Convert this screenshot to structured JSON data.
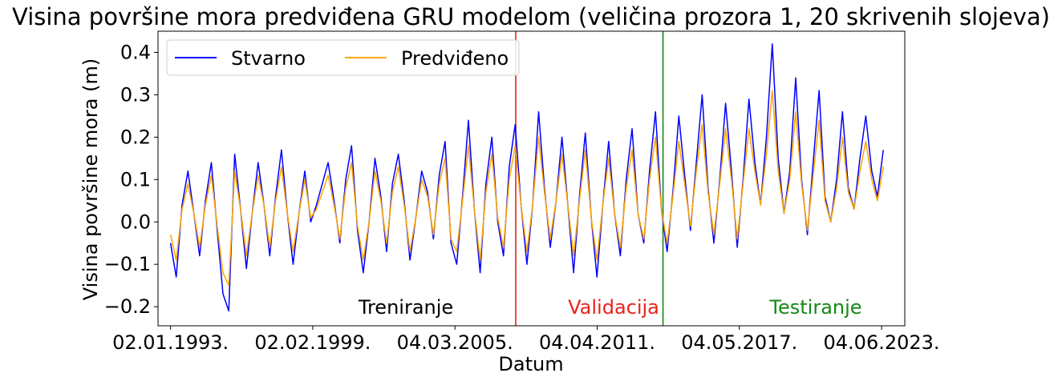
{
  "chart_data": {
    "type": "line",
    "title": "Visina površine mora predviđena GRU modelom (veličina prozora 1, 20 skrivenih slojeva)",
    "xlabel": "Datum",
    "ylabel": "Visina površine mora (m)",
    "xlim": [
      "1992-06-20",
      "2024-06-01"
    ],
    "ylim": [
      -0.245,
      0.45
    ],
    "x_ticks": [
      "1993-01-02",
      "1999-02-02",
      "2005-03-04",
      "2011-04-04",
      "2017-05-04",
      "2023-06-04"
    ],
    "x_tick_labels": [
      "02.01.1993.",
      "02.02.1999.",
      "04.03.2005.",
      "04.04.2011.",
      "04.05.2017.",
      "04.06.2023."
    ],
    "y_ticks": [
      -0.2,
      -0.1,
      0.0,
      0.1,
      0.2,
      0.3,
      0.4
    ],
    "y_tick_labels": [
      "−0.2",
      "−0.1",
      "0.0",
      "0.1",
      "0.2",
      "0.3",
      "0.4"
    ],
    "grid": false,
    "legend": {
      "position": "upper-left",
      "columns": 2
    },
    "colors": {
      "actual": "#0000ff",
      "predicted": "#ffa500",
      "validation": "#e8231b",
      "test": "#138a13"
    },
    "split_lines": [
      {
        "x": "2007-10-10",
        "color": "#e8231b"
      },
      {
        "x": "2014-01-27",
        "color": "#138a13"
      }
    ],
    "annotations": [
      {
        "text": "Treniranje",
        "color": "#000000"
      },
      {
        "text": "Validacija",
        "color": "#e8231b"
      },
      {
        "text": "Testiranje",
        "color": "#138a13"
      }
    ],
    "series": [
      {
        "name": "Stvarno",
        "color": "#0000ff",
        "x": [
          "1993-01-01",
          "1993-04-01",
          "1993-07-01",
          "1993-10-01",
          "1994-01-01",
          "1994-04-01",
          "1994-07-01",
          "1994-10-01",
          "1995-01-01",
          "1995-04-01",
          "1995-07-01",
          "1995-10-01",
          "1996-01-01",
          "1996-04-01",
          "1996-07-01",
          "1996-10-01",
          "1997-01-01",
          "1997-04-01",
          "1997-07-01",
          "1997-10-01",
          "1998-01-01",
          "1998-04-01",
          "1998-07-01",
          "1998-10-01",
          "1999-01-01",
          "1999-04-01",
          "1999-07-01",
          "1999-10-01",
          "2000-01-01",
          "2000-04-01",
          "2000-07-01",
          "2000-10-01",
          "2001-01-01",
          "2001-04-01",
          "2001-07-01",
          "2001-10-01",
          "2002-01-01",
          "2002-04-01",
          "2002-07-01",
          "2002-10-01",
          "2003-01-01",
          "2003-04-01",
          "2003-07-01",
          "2003-10-01",
          "2004-01-01",
          "2004-04-01",
          "2004-07-01",
          "2004-10-01",
          "2005-01-01",
          "2005-04-01",
          "2005-07-01",
          "2005-10-01",
          "2006-01-01",
          "2006-04-01",
          "2006-07-01",
          "2006-10-01",
          "2007-01-01",
          "2007-04-01",
          "2007-07-01",
          "2007-10-01",
          "2008-01-01",
          "2008-04-01",
          "2008-07-01",
          "2008-10-01",
          "2009-01-01",
          "2009-04-01",
          "2009-07-01",
          "2009-10-01",
          "2010-01-01",
          "2010-04-01",
          "2010-07-01",
          "2010-10-01",
          "2011-01-01",
          "2011-04-01",
          "2011-07-01",
          "2011-10-01",
          "2012-01-01",
          "2012-04-01",
          "2012-07-01",
          "2012-10-01",
          "2013-01-01",
          "2013-04-01",
          "2013-07-01",
          "2013-10-01",
          "2014-01-01",
          "2014-04-01",
          "2014-07-01",
          "2014-10-01",
          "2015-01-01",
          "2015-04-01",
          "2015-07-01",
          "2015-10-01",
          "2016-01-01",
          "2016-04-01",
          "2016-07-01",
          "2016-10-01",
          "2017-01-01",
          "2017-04-01",
          "2017-07-01",
          "2017-10-01",
          "2018-01-01",
          "2018-04-01",
          "2018-07-01",
          "2018-10-01",
          "2019-01-01",
          "2019-04-01",
          "2019-07-01",
          "2019-10-01",
          "2020-01-01",
          "2020-04-01",
          "2020-07-01",
          "2020-10-01",
          "2021-01-01",
          "2021-04-01",
          "2021-07-01",
          "2021-10-01",
          "2022-01-01",
          "2022-04-01",
          "2022-07-01",
          "2022-10-01",
          "2023-01-01",
          "2023-04-01",
          "2023-07-01"
        ],
        "values": [
          -0.05,
          -0.13,
          0.04,
          0.12,
          0.02,
          -0.08,
          0.05,
          0.14,
          -0.02,
          -0.17,
          -0.21,
          0.16,
          0.03,
          -0.11,
          0.02,
          0.14,
          0.04,
          -0.08,
          0.06,
          0.17,
          0.02,
          -0.1,
          0.02,
          0.12,
          0.0,
          0.04,
          0.09,
          0.14,
          0.05,
          -0.05,
          0.1,
          0.18,
          -0.02,
          -0.12,
          0.0,
          0.15,
          0.06,
          -0.07,
          0.09,
          0.16,
          0.05,
          -0.09,
          0.01,
          0.12,
          0.07,
          -0.04,
          0.11,
          0.19,
          -0.05,
          -0.1,
          0.06,
          0.24,
          0.03,
          -0.12,
          0.09,
          0.2,
          0.0,
          -0.08,
          0.13,
          0.23,
          0.04,
          -0.1,
          0.04,
          0.26,
          0.08,
          -0.06,
          0.05,
          0.2,
          0.04,
          -0.12,
          0.06,
          0.21,
          0.01,
          -0.13,
          0.04,
          0.19,
          0.02,
          -0.08,
          0.1,
          0.22,
          0.02,
          -0.05,
          0.12,
          0.26,
          0.03,
          -0.07,
          0.07,
          0.25,
          0.11,
          -0.02,
          0.14,
          0.3,
          0.08,
          -0.05,
          0.1,
          0.28,
          0.12,
          -0.06,
          0.1,
          0.29,
          0.14,
          0.04,
          0.2,
          0.42,
          0.15,
          0.02,
          0.12,
          0.34,
          0.1,
          -0.03,
          0.14,
          0.31,
          0.06,
          0.0,
          0.1,
          0.26,
          0.08,
          0.03,
          0.15,
          0.25,
          0.12,
          0.06,
          0.17
        ]
      },
      {
        "name": "Predviđeno",
        "color": "#ffa500",
        "x": [
          "1993-01-01",
          "1993-04-01",
          "1993-07-01",
          "1993-10-01",
          "1994-01-01",
          "1994-04-01",
          "1994-07-01",
          "1994-10-01",
          "1995-01-01",
          "1995-04-01",
          "1995-07-01",
          "1995-10-01",
          "1996-01-01",
          "1996-04-01",
          "1996-07-01",
          "1996-10-01",
          "1997-01-01",
          "1997-04-01",
          "1997-07-01",
          "1997-10-01",
          "1998-01-01",
          "1998-04-01",
          "1998-07-01",
          "1998-10-01",
          "1999-01-01",
          "1999-04-01",
          "1999-07-01",
          "1999-10-01",
          "2000-01-01",
          "2000-04-01",
          "2000-07-01",
          "2000-10-01",
          "2001-01-01",
          "2001-04-01",
          "2001-07-01",
          "2001-10-01",
          "2002-01-01",
          "2002-04-01",
          "2002-07-01",
          "2002-10-01",
          "2003-01-01",
          "2003-04-01",
          "2003-07-01",
          "2003-10-01",
          "2004-01-01",
          "2004-04-01",
          "2004-07-01",
          "2004-10-01",
          "2005-01-01",
          "2005-04-01",
          "2005-07-01",
          "2005-10-01",
          "2006-01-01",
          "2006-04-01",
          "2006-07-01",
          "2006-10-01",
          "2007-01-01",
          "2007-04-01",
          "2007-07-01",
          "2007-10-01",
          "2008-01-01",
          "2008-04-01",
          "2008-07-01",
          "2008-10-01",
          "2009-01-01",
          "2009-04-01",
          "2009-07-01",
          "2009-10-01",
          "2010-01-01",
          "2010-04-01",
          "2010-07-01",
          "2010-10-01",
          "2011-01-01",
          "2011-04-01",
          "2011-07-01",
          "2011-10-01",
          "2012-01-01",
          "2012-04-01",
          "2012-07-01",
          "2012-10-01",
          "2013-01-01",
          "2013-04-01",
          "2013-07-01",
          "2013-10-01",
          "2014-01-01",
          "2014-04-01",
          "2014-07-01",
          "2014-10-01",
          "2015-01-01",
          "2015-04-01",
          "2015-07-01",
          "2015-10-01",
          "2016-01-01",
          "2016-04-01",
          "2016-07-01",
          "2016-10-01",
          "2017-01-01",
          "2017-04-01",
          "2017-07-01",
          "2017-10-01",
          "2018-01-01",
          "2018-04-01",
          "2018-07-01",
          "2018-10-01",
          "2019-01-01",
          "2019-04-01",
          "2019-07-01",
          "2019-10-01",
          "2020-01-01",
          "2020-04-01",
          "2020-07-01",
          "2020-10-01",
          "2021-01-01",
          "2021-04-01",
          "2021-07-01",
          "2021-10-01",
          "2022-01-01",
          "2022-04-01",
          "2022-07-01",
          "2022-10-01",
          "2023-01-01",
          "2023-04-01",
          "2023-07-01"
        ],
        "values": [
          -0.03,
          -0.09,
          0.03,
          0.09,
          0.02,
          -0.06,
          0.04,
          0.11,
          -0.01,
          -0.12,
          -0.15,
          0.12,
          0.03,
          -0.08,
          0.02,
          0.11,
          0.04,
          -0.06,
          0.05,
          0.13,
          0.02,
          -0.07,
          0.02,
          0.1,
          0.01,
          0.03,
          0.07,
          0.11,
          0.04,
          -0.04,
          0.08,
          0.14,
          -0.01,
          -0.09,
          0.0,
          0.12,
          0.05,
          -0.05,
          0.07,
          0.13,
          0.04,
          -0.07,
          0.01,
          0.1,
          0.06,
          -0.03,
          0.09,
          0.15,
          -0.04,
          -0.07,
          0.05,
          0.18,
          0.03,
          -0.09,
          0.07,
          0.16,
          0.01,
          -0.06,
          0.1,
          0.18,
          0.04,
          -0.07,
          0.04,
          0.2,
          0.07,
          -0.04,
          0.05,
          0.16,
          0.04,
          -0.08,
          0.05,
          0.17,
          0.01,
          -0.09,
          0.04,
          0.15,
          0.02,
          -0.06,
          0.08,
          0.17,
          0.02,
          -0.04,
          0.1,
          0.2,
          0.03,
          -0.05,
          0.06,
          0.19,
          0.09,
          -0.01,
          0.12,
          0.23,
          0.07,
          -0.03,
          0.09,
          0.22,
          0.1,
          -0.04,
          0.09,
          0.22,
          0.12,
          0.04,
          0.16,
          0.31,
          0.12,
          0.02,
          0.1,
          0.26,
          0.09,
          -0.02,
          0.11,
          0.24,
          0.05,
          0.0,
          0.08,
          0.2,
          0.07,
          0.03,
          0.12,
          0.19,
          0.1,
          0.05,
          0.13
        ]
      }
    ]
  }
}
